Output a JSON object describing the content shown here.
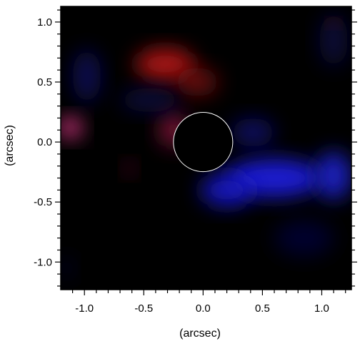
{
  "chart_data": {
    "type": "heatmap",
    "xlabel": "(arcsec)",
    "ylabel": "(arcsec)",
    "xlim": [
      -1.2,
      1.25
    ],
    "ylim": [
      -1.23,
      1.13
    ],
    "x_ticks": [
      -1.0,
      -0.5,
      0.0,
      0.5,
      1.0
    ],
    "x_tick_labels": [
      "-1.0",
      "-0.5",
      "0.0",
      "0.5",
      "1.0"
    ],
    "y_ticks": [
      1.0,
      0.5,
      0.0,
      -0.5,
      -1.0
    ],
    "y_tick_labels": [
      "1.0",
      "0.5",
      "0.0",
      "-0.5",
      "-1.0"
    ],
    "minor_tick_step": 0.1,
    "background_color": "#000000",
    "mask": {
      "center": [
        0.0,
        0.0
      ],
      "radius": 0.25,
      "fill": "#000000",
      "edge_color": "#ffffff"
    },
    "emission_regions": [
      {
        "color": "#c81414",
        "center": [
          -0.32,
          0.65
        ],
        "radius": [
          0.25,
          0.13
        ],
        "intensity": 0.85
      },
      {
        "color": "#a01414",
        "center": [
          -0.05,
          0.5
        ],
        "radius": [
          0.18,
          0.12
        ],
        "intensity": 0.6
      },
      {
        "color": "#b41e50",
        "center": [
          -0.25,
          0.1
        ],
        "radius": [
          0.12,
          0.14
        ],
        "intensity": 0.65
      },
      {
        "color": "#e63c8c",
        "center": [
          -1.12,
          0.12
        ],
        "radius": [
          0.1,
          0.09
        ],
        "intensity": 0.9
      },
      {
        "color": "#8c1432",
        "center": [
          -0.62,
          -0.22
        ],
        "radius": [
          0.05,
          0.06
        ],
        "intensity": 0.6
      },
      {
        "color": "#b41e1e",
        "center": [
          1.1,
          0.99
        ],
        "radius": [
          0.04,
          0.03
        ],
        "intensity": 0.8
      },
      {
        "color": "#1e1ee6",
        "center": [
          0.6,
          -0.3
        ],
        "radius": [
          0.4,
          0.16
        ],
        "intensity": 0.9
      },
      {
        "color": "#1414d2",
        "center": [
          0.2,
          -0.4
        ],
        "radius": [
          0.22,
          0.14
        ],
        "intensity": 0.85
      },
      {
        "color": "#1e28e6",
        "center": [
          1.1,
          -0.28
        ],
        "radius": [
          0.15,
          0.2
        ],
        "intensity": 0.8
      },
      {
        "color": "#10109a",
        "center": [
          0.42,
          0.08
        ],
        "radius": [
          0.18,
          0.12
        ],
        "intensity": 0.6
      },
      {
        "color": "#14148c",
        "center": [
          -0.98,
          0.55
        ],
        "radius": [
          0.12,
          0.22
        ],
        "intensity": 0.55
      },
      {
        "color": "#1a1a8c",
        "center": [
          -0.45,
          0.35
        ],
        "radius": [
          0.25,
          0.1
        ],
        "intensity": 0.4
      },
      {
        "color": "#14147a",
        "center": [
          1.1,
          0.85
        ],
        "radius": [
          0.12,
          0.22
        ],
        "intensity": 0.45
      },
      {
        "color": "#0c0c5a",
        "center": [
          0.85,
          -0.8
        ],
        "radius": [
          0.25,
          0.15
        ],
        "intensity": 0.5
      },
      {
        "color": "#101050",
        "center": [
          -1.15,
          -1.05
        ],
        "radius": [
          0.06,
          0.1
        ],
        "intensity": 0.4
      }
    ]
  }
}
